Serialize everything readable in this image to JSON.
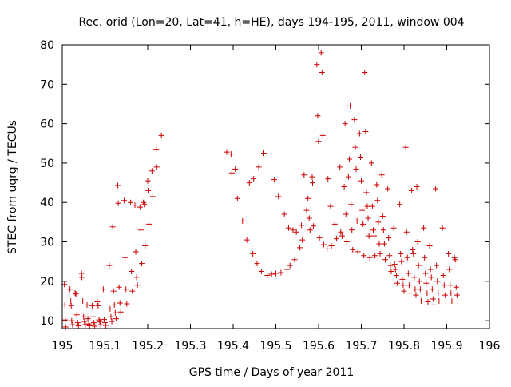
{
  "chart_data": {
    "type": "scatter",
    "title": "Rec. orid (Lon=20, Lat=41, h=HE), days 194-195, 2011, window 004",
    "xlabel": "GPS time / Days of year 2011",
    "ylabel": "STEC from uqrg / TECUs",
    "xlim": [
      195,
      196
    ],
    "ylim": [
      8,
      80
    ],
    "xticks": [
      195,
      195.1,
      195.2,
      195.3,
      195.4,
      195.5,
      195.6,
      195.7,
      195.8,
      195.9,
      196
    ],
    "xtick_labels": [
      "195",
      "195.1",
      "195.2",
      "195.3",
      "195.4",
      "195.5",
      "195.6",
      "195.7",
      "195.8",
      "195.9",
      "196"
    ],
    "yticks": [
      10,
      20,
      30,
      40,
      50,
      60,
      70,
      80
    ],
    "ytick_labels": [
      "10",
      "20",
      "30",
      "40",
      "50",
      "60",
      "70",
      "80"
    ],
    "marker": "+",
    "marker_color": "#cc0000",
    "points": [
      [
        195.005,
        19.2
      ],
      [
        195.006,
        14
      ],
      [
        195.007,
        10.2
      ],
      [
        195.008,
        8.4
      ],
      [
        195.018,
        18
      ],
      [
        195.02,
        15
      ],
      [
        195.021,
        13.8
      ],
      [
        195.022,
        10
      ],
      [
        195.024,
        9
      ],
      [
        195.03,
        17
      ],
      [
        195.032,
        16.8
      ],
      [
        195.034,
        11.5
      ],
      [
        195.036,
        9.5
      ],
      [
        195.038,
        8.7
      ],
      [
        195.045,
        22
      ],
      [
        195.046,
        21
      ],
      [
        195.048,
        15
      ],
      [
        195.05,
        11
      ],
      [
        195.052,
        9.8
      ],
      [
        195.054,
        9
      ],
      [
        195.058,
        14
      ],
      [
        195.06,
        10.5
      ],
      [
        195.062,
        9.2
      ],
      [
        195.064,
        8.7
      ],
      [
        195.07,
        13.8
      ],
      [
        195.072,
        11
      ],
      [
        195.074,
        9.5
      ],
      [
        195.076,
        8.6
      ],
      [
        195.082,
        14.8
      ],
      [
        195.084,
        13.8
      ],
      [
        195.086,
        10.2
      ],
      [
        195.088,
        9.8
      ],
      [
        195.09,
        9
      ],
      [
        195.096,
        18
      ],
      [
        195.098,
        10.3
      ],
      [
        195.1,
        9.5
      ],
      [
        195.102,
        8.8
      ],
      [
        195.11,
        24
      ],
      [
        195.112,
        13
      ],
      [
        195.114,
        11
      ],
      [
        195.116,
        9.8
      ],
      [
        195.118,
        33.8
      ],
      [
        195.12,
        17.5
      ],
      [
        195.122,
        14
      ],
      [
        195.124,
        12
      ],
      [
        195.126,
        10.5
      ],
      [
        195.13,
        44.3
      ],
      [
        195.131,
        39.8
      ],
      [
        195.133,
        18.5
      ],
      [
        195.135,
        14.5
      ],
      [
        195.137,
        12.2
      ],
      [
        195.145,
        40.5
      ],
      [
        195.147,
        26
      ],
      [
        195.149,
        18
      ],
      [
        195.151,
        14.3
      ],
      [
        195.16,
        40
      ],
      [
        195.162,
        22.5
      ],
      [
        195.164,
        17.5
      ],
      [
        195.17,
        39.3
      ],
      [
        195.172,
        27.5
      ],
      [
        195.174,
        21
      ],
      [
        195.176,
        19
      ],
      [
        195.182,
        38.8
      ],
      [
        195.184,
        33
      ],
      [
        195.186,
        24.5
      ],
      [
        195.19,
        40
      ],
      [
        195.192,
        39.5
      ],
      [
        195.194,
        29
      ],
      [
        195.2,
        45.5
      ],
      [
        195.201,
        43
      ],
      [
        195.203,
        34.5
      ],
      [
        195.21,
        48
      ],
      [
        195.212,
        41.5
      ],
      [
        195.22,
        53.5
      ],
      [
        195.221,
        49
      ],
      [
        195.232,
        57
      ],
      [
        195.385,
        52.8
      ],
      [
        195.395,
        52.3
      ],
      [
        195.397,
        47.5
      ],
      [
        195.405,
        48.5
      ],
      [
        195.41,
        41
      ],
      [
        195.422,
        35.3
      ],
      [
        195.432,
        30.5
      ],
      [
        195.438,
        45
      ],
      [
        195.446,
        27
      ],
      [
        195.448,
        46
      ],
      [
        195.456,
        24.5
      ],
      [
        195.46,
        49
      ],
      [
        195.466,
        22.5
      ],
      [
        195.472,
        52.5
      ],
      [
        195.48,
        21.5
      ],
      [
        195.49,
        21.8
      ],
      [
        195.496,
        45.8
      ],
      [
        195.5,
        22
      ],
      [
        195.506,
        41.5
      ],
      [
        195.512,
        22.2
      ],
      [
        195.52,
        37
      ],
      [
        195.526,
        23
      ],
      [
        195.53,
        33.5
      ],
      [
        195.533,
        24
      ],
      [
        195.54,
        33
      ],
      [
        195.544,
        25.5
      ],
      [
        195.548,
        32.5
      ],
      [
        195.556,
        28.5
      ],
      [
        195.56,
        34.2
      ],
      [
        195.562,
        30.5
      ],
      [
        195.566,
        47
      ],
      [
        195.572,
        38
      ],
      [
        195.575,
        41
      ],
      [
        195.578,
        36
      ],
      [
        195.58,
        33
      ],
      [
        195.585,
        46.5
      ],
      [
        195.586,
        45
      ],
      [
        195.588,
        34
      ],
      [
        195.596,
        75
      ],
      [
        195.598,
        62
      ],
      [
        195.6,
        55.5
      ],
      [
        195.602,
        31
      ],
      [
        195.606,
        78
      ],
      [
        195.608,
        73
      ],
      [
        195.61,
        57
      ],
      [
        195.612,
        29.3
      ],
      [
        195.62,
        28.2
      ],
      [
        195.622,
        46
      ],
      [
        195.628,
        39
      ],
      [
        195.63,
        29
      ],
      [
        195.638,
        34.5
      ],
      [
        195.642,
        30.8
      ],
      [
        195.65,
        49
      ],
      [
        195.652,
        32.5
      ],
      [
        195.655,
        31.5
      ],
      [
        195.66,
        44
      ],
      [
        195.662,
        60
      ],
      [
        195.664,
        37
      ],
      [
        195.666,
        30
      ],
      [
        195.67,
        46.5
      ],
      [
        195.672,
        51
      ],
      [
        195.674,
        64.5
      ],
      [
        195.676,
        39.5
      ],
      [
        195.678,
        33
      ],
      [
        195.68,
        28
      ],
      [
        195.684,
        61
      ],
      [
        195.686,
        54
      ],
      [
        195.688,
        48.5
      ],
      [
        195.69,
        35.3
      ],
      [
        195.692,
        27.5
      ],
      [
        195.696,
        57.5
      ],
      [
        195.698,
        51.5
      ],
      [
        195.7,
        45.5
      ],
      [
        195.702,
        38
      ],
      [
        195.704,
        34.5
      ],
      [
        195.706,
        26.5
      ],
      [
        195.708,
        73
      ],
      [
        195.71,
        58
      ],
      [
        195.712,
        42.5
      ],
      [
        195.714,
        39
      ],
      [
        195.716,
        36
      ],
      [
        195.718,
        31.5
      ],
      [
        195.72,
        26
      ],
      [
        195.724,
        50
      ],
      [
        195.726,
        39
      ],
      [
        195.728,
        33
      ],
      [
        195.73,
        31.5
      ],
      [
        195.732,
        26.5
      ],
      [
        195.736,
        44.5
      ],
      [
        195.738,
        40.5
      ],
      [
        195.74,
        35
      ],
      [
        195.742,
        29.5
      ],
      [
        195.744,
        27
      ],
      [
        195.748,
        47
      ],
      [
        195.75,
        36.5
      ],
      [
        195.752,
        33
      ],
      [
        195.754,
        29.5
      ],
      [
        195.756,
        25.5
      ],
      [
        195.762,
        43.5
      ],
      [
        195.764,
        31
      ],
      [
        195.766,
        26.5
      ],
      [
        195.768,
        24
      ],
      [
        195.77,
        22.5
      ],
      [
        195.776,
        33.5
      ],
      [
        195.778,
        24.3
      ],
      [
        195.78,
        23
      ],
      [
        195.782,
        21.5
      ],
      [
        195.784,
        19.5
      ],
      [
        195.79,
        39.5
      ],
      [
        195.792,
        27
      ],
      [
        195.794,
        25
      ],
      [
        195.796,
        20.5
      ],
      [
        195.798,
        19
      ],
      [
        195.8,
        17.5
      ],
      [
        195.804,
        54
      ],
      [
        195.806,
        32.5
      ],
      [
        195.808,
        26
      ],
      [
        195.81,
        22
      ],
      [
        195.812,
        19
      ],
      [
        195.814,
        17
      ],
      [
        195.818,
        43
      ],
      [
        195.82,
        28
      ],
      [
        195.822,
        27
      ],
      [
        195.824,
        21
      ],
      [
        195.826,
        18
      ],
      [
        195.828,
        16.5
      ],
      [
        195.83,
        44
      ],
      [
        195.832,
        30
      ],
      [
        195.834,
        24
      ],
      [
        195.836,
        20
      ],
      [
        195.838,
        18
      ],
      [
        195.84,
        15
      ],
      [
        195.846,
        33.5
      ],
      [
        195.848,
        26
      ],
      [
        195.85,
        22
      ],
      [
        195.852,
        19.5
      ],
      [
        195.854,
        17
      ],
      [
        195.856,
        14.8
      ],
      [
        195.86,
        29
      ],
      [
        195.862,
        23
      ],
      [
        195.864,
        21
      ],
      [
        195.866,
        18
      ],
      [
        195.868,
        15.5
      ],
      [
        195.87,
        14
      ],
      [
        195.874,
        43.5
      ],
      [
        195.876,
        24
      ],
      [
        195.878,
        20
      ],
      [
        195.88,
        17
      ],
      [
        195.882,
        15
      ],
      [
        195.89,
        33.5
      ],
      [
        195.892,
        21.5
      ],
      [
        195.894,
        19
      ],
      [
        195.896,
        16.5
      ],
      [
        195.898,
        15
      ],
      [
        195.904,
        27
      ],
      [
        195.906,
        23
      ],
      [
        195.908,
        19
      ],
      [
        195.91,
        17
      ],
      [
        195.912,
        15
      ],
      [
        195.918,
        26
      ],
      [
        195.92,
        25.5
      ],
      [
        195.922,
        18.5
      ],
      [
        195.924,
        16.5
      ],
      [
        195.926,
        15
      ]
    ]
  }
}
